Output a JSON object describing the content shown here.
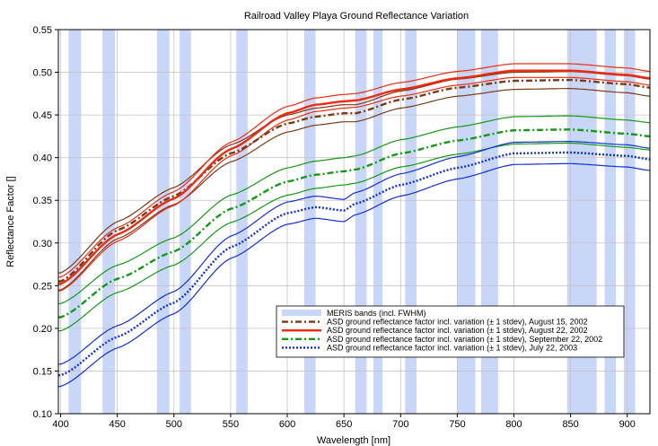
{
  "chart_data": {
    "type": "line",
    "title": "Railroad Valley Playa Ground Reflectance Variation",
    "xlabel": "Wavelength [nm]",
    "ylabel": "Reflectance Factor []",
    "xlim": [
      398,
      920
    ],
    "ylim": [
      0.1,
      0.55
    ],
    "xticks": [
      400,
      450,
      500,
      550,
      600,
      650,
      700,
      750,
      800,
      850,
      900
    ],
    "yticks": [
      "0.10",
      "0.15",
      "0.20",
      "0.25",
      "0.30",
      "0.35",
      "0.40",
      "0.45",
      "0.50",
      "0.55"
    ],
    "grid": true,
    "legend_position": "bottom-right",
    "meris_bands": {
      "name": "MERIS  bands (incl. FWHM)",
      "color": "#c8d6f8",
      "ranges": [
        [
          407,
          418
        ],
        [
          437,
          448
        ],
        [
          485,
          496
        ],
        [
          505,
          515
        ],
        [
          555,
          565
        ],
        [
          615,
          625
        ],
        [
          660,
          670
        ],
        [
          676,
          684
        ],
        [
          704,
          714
        ],
        [
          750,
          758
        ],
        [
          758,
          766
        ],
        [
          771,
          786
        ],
        [
          847,
          873
        ],
        [
          880,
          890
        ],
        [
          897,
          907
        ]
      ]
    },
    "series": [
      {
        "name": "ASD ground reflectance factor incl. variation (± 1 stdev), August 15, 2002",
        "color": "#7a3a14",
        "dash": "dashdot",
        "x": [
          400,
          450,
          500,
          550,
          600,
          625,
          650,
          660,
          700,
          750,
          800,
          850,
          900,
          920
        ],
        "y": [
          0.255,
          0.315,
          0.355,
          0.405,
          0.44,
          0.448,
          0.452,
          0.452,
          0.468,
          0.482,
          0.49,
          0.491,
          0.486,
          0.482
        ],
        "band": 0.01
      },
      {
        "name": "ASD ground reflectance factor incl. variation (± 1 stdev), August 22, 2002",
        "color": "#ee2b10",
        "dash": "solid",
        "x": [
          400,
          450,
          500,
          550,
          600,
          625,
          650,
          660,
          700,
          750,
          800,
          850,
          900,
          920
        ],
        "y": [
          0.252,
          0.31,
          0.352,
          0.41,
          0.452,
          0.462,
          0.466,
          0.467,
          0.48,
          0.493,
          0.502,
          0.502,
          0.497,
          0.493
        ],
        "band": 0.008
      },
      {
        "name": "ASD ground reflectance factor incl. variation (± 1 stdev), September 22, 2002",
        "color": "#139a13",
        "dash": "dashdot",
        "x": [
          400,
          450,
          500,
          550,
          600,
          625,
          650,
          660,
          700,
          750,
          800,
          850,
          900,
          920
        ],
        "y": [
          0.213,
          0.258,
          0.29,
          0.34,
          0.372,
          0.38,
          0.384,
          0.386,
          0.405,
          0.42,
          0.432,
          0.433,
          0.428,
          0.425
        ],
        "band": 0.016
      },
      {
        "name": "ASD ground reflectance factor incl. variation (± 1 stdev), July 22, 2003",
        "color": "#1030d8",
        "dash": "dot",
        "x": [
          400,
          450,
          500,
          550,
          600,
          625,
          650,
          660,
          700,
          750,
          800,
          850,
          900,
          920
        ],
        "y": [
          0.145,
          0.19,
          0.23,
          0.295,
          0.335,
          0.342,
          0.338,
          0.346,
          0.368,
          0.388,
          0.405,
          0.406,
          0.402,
          0.398
        ],
        "band": 0.013
      }
    ]
  }
}
